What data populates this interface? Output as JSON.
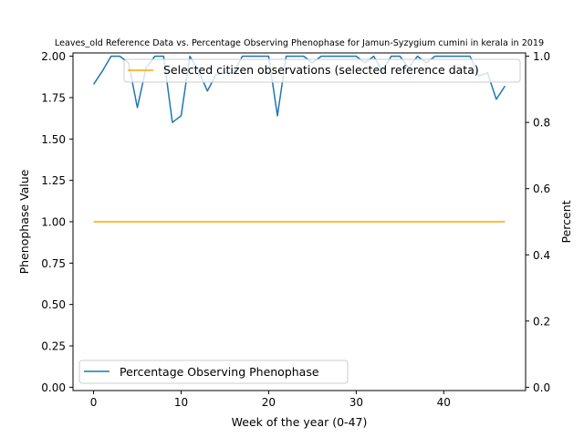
{
  "chart_data": {
    "type": "line",
    "title": "Leaves_old Reference Data vs. Percentage Observing Phenophase for Jamun-Syzygium cumini in kerala in 2019",
    "xlabel": "Week of the year (0-47)",
    "ylabel_left": "Phenophase Value",
    "ylabel_right": "Percent",
    "xlim": [
      -2.35,
      49.35
    ],
    "ylim_left": [
      -0.02,
      2.02
    ],
    "ylim_right": [
      -0.01,
      1.01
    ],
    "x_ticks": [
      0,
      10,
      20,
      30,
      40
    ],
    "y_ticks_left": [
      "0.00",
      "0.25",
      "0.50",
      "0.75",
      "1.00",
      "1.25",
      "1.50",
      "1.75",
      "2.00"
    ],
    "y_ticks_right": [
      "0.0",
      "0.2",
      "0.4",
      "0.6",
      "0.8",
      "1.0"
    ],
    "grid": false,
    "series": [
      {
        "name": "Percentage Observing Phenophase",
        "axis": "left",
        "color": "#1f77b4",
        "legend_position": "lower-left",
        "x": [
          0,
          1,
          2,
          3,
          4,
          5,
          6,
          7,
          8,
          9,
          10,
          11,
          12,
          13,
          14,
          15,
          16,
          17,
          18,
          19,
          20,
          21,
          22,
          23,
          24,
          25,
          26,
          27,
          28,
          29,
          30,
          31,
          32,
          33,
          34,
          35,
          36,
          37,
          38,
          39,
          40,
          41,
          42,
          43,
          44,
          45,
          46,
          47
        ],
        "y": [
          1.83,
          1.91,
          2.0,
          2.0,
          1.96,
          1.69,
          1.93,
          2.0,
          2.0,
          1.6,
          1.64,
          2.0,
          1.91,
          1.79,
          1.89,
          1.9,
          1.9,
          2.0,
          2.0,
          2.0,
          2.0,
          1.64,
          2.0,
          2.0,
          2.0,
          1.96,
          2.0,
          2.0,
          2.0,
          2.0,
          2.0,
          1.96,
          2.0,
          1.91,
          2.0,
          2.0,
          1.93,
          2.0,
          1.96,
          2.0,
          2.0,
          2.0,
          2.0,
          2.0,
          1.88,
          1.9,
          1.74,
          1.82
        ]
      },
      {
        "name": "Selected citizen observations (selected reference data)",
        "axis": "right",
        "color": "#ffa500",
        "legend_position": "upper-right",
        "x": [
          0,
          1,
          2,
          3,
          4,
          5,
          6,
          7,
          8,
          9,
          10,
          11,
          12,
          13,
          14,
          15,
          16,
          17,
          18,
          19,
          20,
          21,
          22,
          23,
          24,
          25,
          26,
          27,
          28,
          29,
          30,
          31,
          32,
          33,
          34,
          35,
          36,
          37,
          38,
          39,
          40,
          41,
          42,
          43,
          44,
          45,
          46,
          47
        ],
        "y": [
          0.5,
          0.5,
          0.5,
          0.5,
          0.5,
          0.5,
          0.5,
          0.5,
          0.5,
          0.5,
          0.5,
          0.5,
          0.5,
          0.5,
          0.5,
          0.5,
          0.5,
          0.5,
          0.5,
          0.5,
          0.5,
          0.5,
          0.5,
          0.5,
          0.5,
          0.5,
          0.5,
          0.5,
          0.5,
          0.5,
          0.5,
          0.5,
          0.5,
          0.5,
          0.5,
          0.5,
          0.5,
          0.5,
          0.5,
          0.5,
          0.5,
          0.5,
          0.5,
          0.5,
          0.5,
          0.5,
          0.5,
          0.5
        ]
      }
    ]
  }
}
